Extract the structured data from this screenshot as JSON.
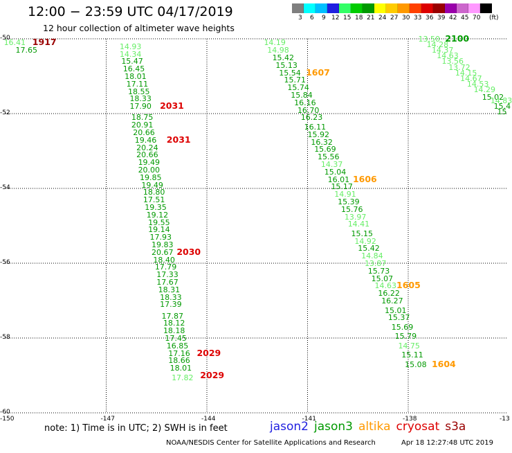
{
  "title": "12:00 − 23:59 UTC 04/17/2019",
  "subtitle": "12 hour collection of altimeter wave heights",
  "legend": {
    "unit": "(ft)",
    "bins": [
      {
        "label": "3",
        "color": "#7f7f7f"
      },
      {
        "label": "6",
        "color": "#00ffff"
      },
      {
        "label": "9",
        "color": "#00bfff"
      },
      {
        "label": "12",
        "color": "#1f1fe0"
      },
      {
        "label": "15",
        "color": "#33ff66"
      },
      {
        "label": "18",
        "color": "#00cc00"
      },
      {
        "label": "21",
        "color": "#009900"
      },
      {
        "label": "24",
        "color": "#ffff00"
      },
      {
        "label": "27",
        "color": "#ffcc00"
      },
      {
        "label": "30",
        "color": "#ff9900"
      },
      {
        "label": "33",
        "color": "#ff4000"
      },
      {
        "label": "36",
        "color": "#dd0000"
      },
      {
        "label": "39",
        "color": "#990000"
      },
      {
        "label": "42",
        "color": "#9900aa"
      },
      {
        "label": "45",
        "color": "#cc66cc"
      },
      {
        "label": "70",
        "color": "#ff99ff"
      },
      {
        "label": "",
        "color": "#000000"
      }
    ]
  },
  "axes": {
    "lon_ticks": [
      "-150",
      "-147",
      "-144",
      "-141",
      "-138",
      "-13"
    ],
    "lat_ticks": [
      "-50",
      "-52",
      "-54",
      "-56",
      "-58",
      "-60"
    ]
  },
  "colors": {
    "light": "#66ee66",
    "green": "#009900",
    "darkred": "#990000",
    "red": "#dd0000",
    "orange": "#ff9900"
  },
  "tracks": [
    {
      "name": "track-west",
      "points": [
        {
          "lat": -50.1,
          "lon": -150.05,
          "v": "16.41",
          "c": "light"
        },
        {
          "lat": -50.3,
          "lon": -149.7,
          "v": "17.65",
          "c": "green"
        },
        {
          "lat": -50.2,
          "lon": -146.6,
          "v": "14.93",
          "c": "light"
        },
        {
          "lat": -50.4,
          "lon": -146.6,
          "v": "14.34",
          "c": "light"
        },
        {
          "lat": -50.6,
          "lon": -146.55,
          "v": "15.47",
          "c": "green"
        },
        {
          "lat": -50.8,
          "lon": -146.5,
          "v": "16.45",
          "c": "green"
        },
        {
          "lat": -51.0,
          "lon": -146.45,
          "v": "18.01",
          "c": "green"
        },
        {
          "lat": -51.2,
          "lon": -146.4,
          "v": "17.11",
          "c": "green"
        },
        {
          "lat": -51.4,
          "lon": -146.35,
          "v": "18.55",
          "c": "green"
        },
        {
          "lat": -51.6,
          "lon": -146.3,
          "v": "18.33",
          "c": "green"
        },
        {
          "lat": -51.8,
          "lon": -146.3,
          "v": "17.90",
          "c": "green"
        },
        {
          "lat": -52.1,
          "lon": -146.25,
          "v": "18.75",
          "c": "green"
        },
        {
          "lat": -52.3,
          "lon": -146.25,
          "v": "20.91",
          "c": "green"
        },
        {
          "lat": -52.5,
          "lon": -146.2,
          "v": "20.66",
          "c": "green"
        },
        {
          "lat": -52.7,
          "lon": -146.15,
          "v": "19.46",
          "c": "green"
        },
        {
          "lat": -52.9,
          "lon": -146.1,
          "v": "20.24",
          "c": "green"
        },
        {
          "lat": -53.1,
          "lon": -146.1,
          "v": "20.66",
          "c": "green"
        },
        {
          "lat": -53.3,
          "lon": -146.05,
          "v": "19.49",
          "c": "green"
        },
        {
          "lat": -53.5,
          "lon": -146.05,
          "v": "20.00",
          "c": "green"
        },
        {
          "lat": -53.7,
          "lon": -146.0,
          "v": "19.85",
          "c": "green"
        },
        {
          "lat": -53.9,
          "lon": -145.95,
          "v": "19.49",
          "c": "green"
        },
        {
          "lat": -54.1,
          "lon": -145.9,
          "v": "18.80",
          "c": "green"
        },
        {
          "lat": -54.3,
          "lon": -145.9,
          "v": "17.51",
          "c": "green"
        },
        {
          "lat": -54.5,
          "lon": -145.85,
          "v": "19.35",
          "c": "green"
        },
        {
          "lat": -54.7,
          "lon": -145.8,
          "v": "19.12",
          "c": "green"
        },
        {
          "lat": -54.9,
          "lon": -145.75,
          "v": "19.55",
          "c": "green"
        },
        {
          "lat": -55.1,
          "lon": -145.75,
          "v": "19.14",
          "c": "green"
        },
        {
          "lat": -55.3,
          "lon": -145.7,
          "v": "17.93",
          "c": "green"
        },
        {
          "lat": -55.5,
          "lon": -145.65,
          "v": "19.83",
          "c": "green"
        },
        {
          "lat": -55.7,
          "lon": -145.65,
          "v": "20.67",
          "c": "green"
        },
        {
          "lat": -55.9,
          "lon": -145.6,
          "v": "18.40",
          "c": "green"
        },
        {
          "lat": -56.1,
          "lon": -145.55,
          "v": "17.79",
          "c": "green"
        },
        {
          "lat": -56.3,
          "lon": -145.5,
          "v": "17.33",
          "c": "green"
        },
        {
          "lat": -56.5,
          "lon": -145.5,
          "v": "17.67",
          "c": "green"
        },
        {
          "lat": -56.7,
          "lon": -145.45,
          "v": "18.31",
          "c": "green"
        },
        {
          "lat": -56.9,
          "lon": -145.4,
          "v": "18.33",
          "c": "green"
        },
        {
          "lat": -57.1,
          "lon": -145.4,
          "v": "17.39",
          "c": "green"
        },
        {
          "lat": -57.4,
          "lon": -145.35,
          "v": "17.87",
          "c": "green"
        },
        {
          "lat": -57.6,
          "lon": -145.3,
          "v": "18.12",
          "c": "green"
        },
        {
          "lat": -57.8,
          "lon": -145.3,
          "v": "18.18",
          "c": "green"
        },
        {
          "lat": -58.0,
          "lon": -145.25,
          "v": "17.45",
          "c": "green"
        },
        {
          "lat": -58.2,
          "lon": -145.2,
          "v": "16.85",
          "c": "green"
        },
        {
          "lat": -58.4,
          "lon": -145.15,
          "v": "17.16",
          "c": "green"
        },
        {
          "lat": -58.6,
          "lon": -145.15,
          "v": "18.66",
          "c": "green"
        },
        {
          "lat": -58.8,
          "lon": -145.1,
          "v": "18.01",
          "c": "green"
        },
        {
          "lat": -59.05,
          "lon": -145.05,
          "v": "17.82",
          "c": "light"
        }
      ]
    },
    {
      "name": "track-middle",
      "points": [
        {
          "lat": -50.1,
          "lon": -142.3,
          "v": "14.19",
          "c": "light"
        },
        {
          "lat": -50.3,
          "lon": -142.2,
          "v": "14.98",
          "c": "light"
        },
        {
          "lat": -50.5,
          "lon": -142.05,
          "v": "15.42",
          "c": "green"
        },
        {
          "lat": -50.7,
          "lon": -141.95,
          "v": "15.13",
          "c": "green"
        },
        {
          "lat": -50.9,
          "lon": -141.85,
          "v": "15.54",
          "c": "green"
        },
        {
          "lat": -51.1,
          "lon": -141.7,
          "v": "15.71",
          "c": "green"
        },
        {
          "lat": -51.3,
          "lon": -141.6,
          "v": "15.74",
          "c": "green"
        },
        {
          "lat": -51.5,
          "lon": -141.5,
          "v": "15.84",
          "c": "green"
        },
        {
          "lat": -51.7,
          "lon": -141.4,
          "v": "16.16",
          "c": "green"
        },
        {
          "lat": -51.9,
          "lon": -141.3,
          "v": "16.70",
          "c": "green"
        },
        {
          "lat": -52.1,
          "lon": -141.2,
          "v": "16.23",
          "c": "green"
        },
        {
          "lat": -52.35,
          "lon": -141.1,
          "v": "16.11",
          "c": "green"
        },
        {
          "lat": -52.55,
          "lon": -141.0,
          "v": "15.92",
          "c": "green"
        },
        {
          "lat": -52.75,
          "lon": -140.9,
          "v": "16.32",
          "c": "green"
        },
        {
          "lat": -52.95,
          "lon": -140.8,
          "v": "15.69",
          "c": "green"
        },
        {
          "lat": -53.15,
          "lon": -140.7,
          "v": "15.56",
          "c": "green"
        },
        {
          "lat": -53.35,
          "lon": -140.6,
          "v": "14.37",
          "c": "light"
        },
        {
          "lat": -53.55,
          "lon": -140.5,
          "v": "15.04",
          "c": "green"
        },
        {
          "lat": -53.75,
          "lon": -140.4,
          "v": "16.01",
          "c": "green"
        },
        {
          "lat": -53.95,
          "lon": -140.3,
          "v": "15.17",
          "c": "green"
        },
        {
          "lat": -54.15,
          "lon": -140.2,
          "v": "14.91",
          "c": "light"
        },
        {
          "lat": -54.35,
          "lon": -140.1,
          "v": "15.39",
          "c": "green"
        },
        {
          "lat": -54.55,
          "lon": -140.0,
          "v": "15.76",
          "c": "green"
        },
        {
          "lat": -54.75,
          "lon": -139.9,
          "v": "13.97",
          "c": "light"
        },
        {
          "lat": -54.95,
          "lon": -139.8,
          "v": "14.41",
          "c": "light"
        },
        {
          "lat": -55.2,
          "lon": -139.7,
          "v": "15.15",
          "c": "green"
        },
        {
          "lat": -55.4,
          "lon": -139.6,
          "v": "14.92",
          "c": "light"
        },
        {
          "lat": -55.6,
          "lon": -139.5,
          "v": "15.42",
          "c": "green"
        },
        {
          "lat": -55.8,
          "lon": -139.4,
          "v": "14.84",
          "c": "light"
        },
        {
          "lat": -56.0,
          "lon": -139.3,
          "v": "13.87",
          "c": "light"
        },
        {
          "lat": -56.2,
          "lon": -139.2,
          "v": "15.73",
          "c": "green"
        },
        {
          "lat": -56.4,
          "lon": -139.1,
          "v": "15.07",
          "c": "green"
        },
        {
          "lat": -56.6,
          "lon": -139.0,
          "v": "14.63",
          "c": "light"
        },
        {
          "lat": -56.8,
          "lon": -138.9,
          "v": "16.22",
          "c": "green"
        },
        {
          "lat": -57.0,
          "lon": -138.8,
          "v": "16.27",
          "c": "green"
        },
        {
          "lat": -57.25,
          "lon": -138.7,
          "v": "15.01",
          "c": "green"
        },
        {
          "lat": -57.45,
          "lon": -138.6,
          "v": "15.37",
          "c": "green"
        },
        {
          "lat": -57.7,
          "lon": -138.5,
          "v": "15.69",
          "c": "green"
        },
        {
          "lat": -57.95,
          "lon": -138.4,
          "v": "15.79",
          "c": "green"
        },
        {
          "lat": -58.2,
          "lon": -138.3,
          "v": "14.75",
          "c": "light"
        },
        {
          "lat": -58.45,
          "lon": -138.2,
          "v": "15.11",
          "c": "green"
        },
        {
          "lat": -58.7,
          "lon": -138.1,
          "v": "15.08",
          "c": "green"
        }
      ]
    },
    {
      "name": "track-east",
      "points": [
        {
          "lat": -50.0,
          "lon": -137.7,
          "v": "13.50",
          "c": "light"
        },
        {
          "lat": -50.15,
          "lon": -137.45,
          "v": "14.28",
          "c": "light"
        },
        {
          "lat": -50.3,
          "lon": -137.3,
          "v": "14.37",
          "c": "light"
        },
        {
          "lat": -50.45,
          "lon": -137.15,
          "v": "14.63",
          "c": "light"
        },
        {
          "lat": -50.6,
          "lon": -137.0,
          "v": "13.56",
          "c": "light"
        },
        {
          "lat": -50.75,
          "lon": -136.8,
          "v": "13.72",
          "c": "light"
        },
        {
          "lat": -50.9,
          "lon": -136.6,
          "v": "14.15",
          "c": "light"
        },
        {
          "lat": -51.05,
          "lon": -136.45,
          "v": "14.67",
          "c": "light"
        },
        {
          "lat": -51.2,
          "lon": -136.25,
          "v": "14.53",
          "c": "light"
        },
        {
          "lat": -51.35,
          "lon": -136.05,
          "v": "14.29",
          "c": "light"
        },
        {
          "lat": -51.55,
          "lon": -135.8,
          "v": "15.02",
          "c": "green"
        },
        {
          "lat": -51.65,
          "lon": -135.55,
          "v": "14.83",
          "c": "light"
        },
        {
          "lat": -51.8,
          "lon": -135.45,
          "v": "15.4",
          "c": "green"
        },
        {
          "lat": -51.95,
          "lon": -135.35,
          "v": "15",
          "c": "green"
        }
      ]
    }
  ],
  "passes": [
    {
      "lat": -50.1,
      "lon": -149.2,
      "t": "1917",
      "c": "darkred"
    },
    {
      "lat": -51.8,
      "lon": -145.4,
      "t": "2031",
      "c": "red"
    },
    {
      "lat": -52.7,
      "lon": -145.2,
      "t": "2031",
      "c": "red"
    },
    {
      "lat": -55.7,
      "lon": -144.9,
      "t": "2030",
      "c": "red"
    },
    {
      "lat": -58.4,
      "lon": -144.3,
      "t": "2029",
      "c": "red"
    },
    {
      "lat": -59.0,
      "lon": -144.2,
      "t": "2029",
      "c": "red"
    },
    {
      "lat": -50.9,
      "lon": -141.05,
      "t": "1607",
      "c": "orange"
    },
    {
      "lat": -53.75,
      "lon": -139.65,
      "t": "1606",
      "c": "orange"
    },
    {
      "lat": -56.6,
      "lon": -138.35,
      "t": "1605",
      "c": "orange"
    },
    {
      "lat": -58.7,
      "lon": -137.3,
      "t": "1604",
      "c": "orange"
    },
    {
      "lat": -50.0,
      "lon": -136.9,
      "t": "2100",
      "c": "green"
    }
  ],
  "note": "note: 1) Time is in UTC; 2) SWH is in feet",
  "satellites": [
    {
      "name": "jason2",
      "color": "#1f1fe0"
    },
    {
      "name": "jason3",
      "color": "#009900"
    },
    {
      "name": "altika",
      "color": "#ff9900"
    },
    {
      "name": "cryosat",
      "color": "#dd0000"
    },
    {
      "name": "s3a",
      "color": "#990000"
    }
  ],
  "credit": "NOAA/NESDIS Center for Satellite Applications and Research",
  "timestamp": "Apr 18 12:27:48 UTC 2019"
}
